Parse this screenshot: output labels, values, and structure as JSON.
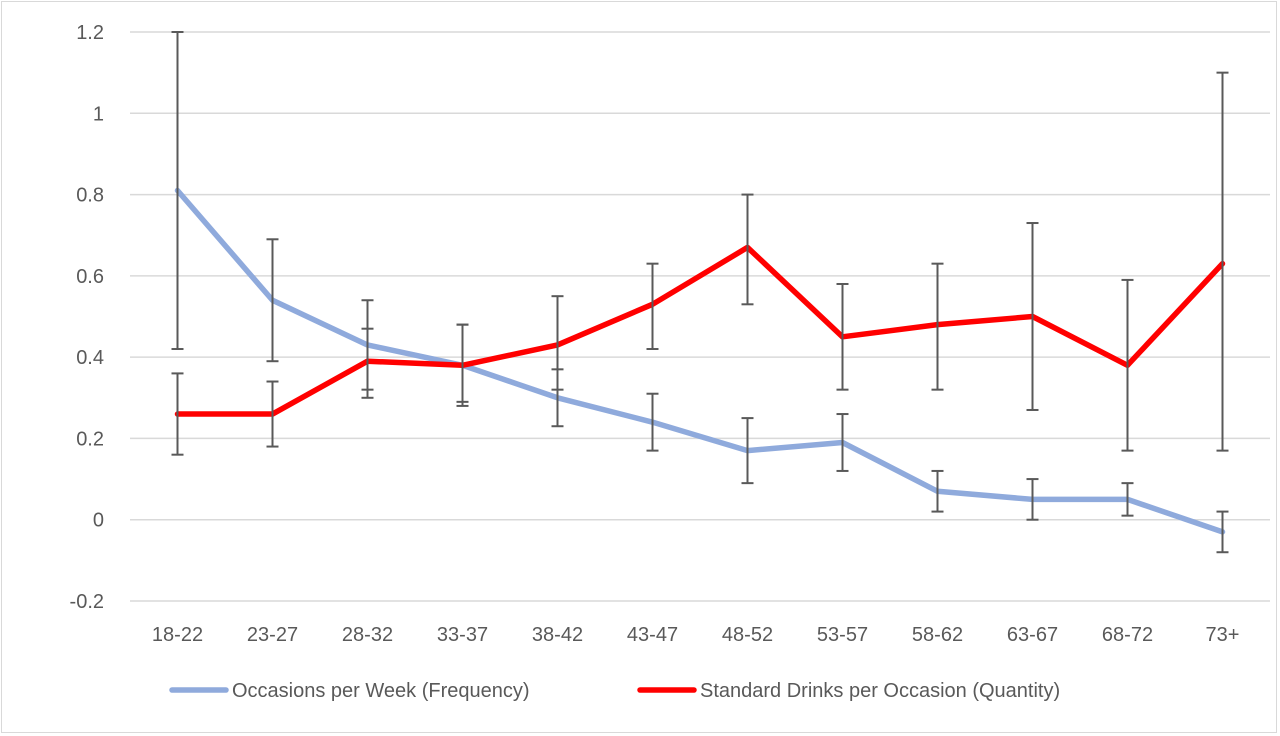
{
  "chart_data": {
    "type": "line",
    "categories": [
      "18-22",
      "23-27",
      "28-32",
      "33-37",
      "38-42",
      "43-47",
      "48-52",
      "53-57",
      "58-62",
      "63-67",
      "68-72",
      "73+"
    ],
    "ylim": [
      -0.2,
      1.2
    ],
    "yticks": [
      "-0.2",
      "0",
      "0.2",
      "0.4",
      "0.6",
      "0.8",
      "1",
      "1.2"
    ],
    "ytick_values": [
      -0.2,
      0,
      0.2,
      0.4,
      0.6,
      0.8,
      1.0,
      1.2
    ],
    "grid": "horizontal",
    "legend_position": "bottom",
    "series": [
      {
        "name": "Occasions per Week (Frequency)",
        "color": "#8faadc",
        "values": [
          0.81,
          0.54,
          0.43,
          0.38,
          0.3,
          0.24,
          0.17,
          0.19,
          0.07,
          0.05,
          0.05,
          -0.03
        ],
        "error_low": [
          0.42,
          0.39,
          0.32,
          0.29,
          0.23,
          0.17,
          0.09,
          0.12,
          0.02,
          0.0,
          0.01,
          -0.08
        ],
        "error_high": [
          1.2,
          0.69,
          0.54,
          0.48,
          0.37,
          0.31,
          0.25,
          0.26,
          0.12,
          0.1,
          0.09,
          0.02
        ]
      },
      {
        "name": "Standard Drinks per Occasion (Quantity)",
        "color": "#ff0000",
        "values": [
          0.26,
          0.26,
          0.39,
          0.38,
          0.43,
          0.53,
          0.67,
          0.45,
          0.48,
          0.5,
          0.38,
          0.63
        ],
        "error_low": [
          0.16,
          0.18,
          0.3,
          0.28,
          0.32,
          0.42,
          0.53,
          0.32,
          0.32,
          0.27,
          0.17,
          0.17
        ],
        "error_high": [
          0.36,
          0.34,
          0.47,
          0.48,
          0.55,
          0.63,
          0.8,
          0.58,
          0.63,
          0.73,
          0.59,
          1.1
        ]
      }
    ]
  }
}
